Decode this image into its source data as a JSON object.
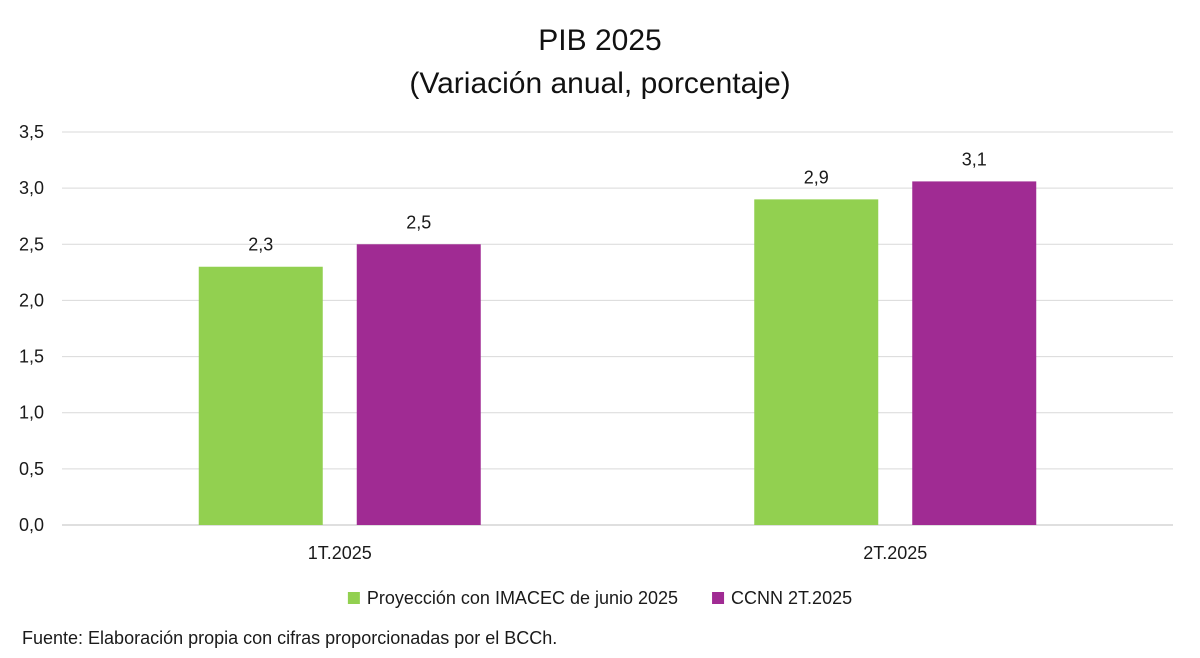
{
  "chart_data": {
    "type": "bar",
    "title": "PIB 2025",
    "subtitle": "(Variación anual, porcentaje)",
    "categories": [
      "1T.2025",
      "2T.2025"
    ],
    "series": [
      {
        "name": "Proyección con IMACEC de junio 2025",
        "color": "#92d050",
        "values": [
          2.3,
          2.9
        ],
        "labels": [
          "2,3",
          "2,9"
        ]
      },
      {
        "name": "CCNN 2T.2025",
        "color": "#a02b93",
        "values": [
          2.5,
          3.06
        ],
        "labels": [
          "2,5",
          "3,1"
        ]
      }
    ],
    "yticks": [
      0,
      0.5,
      1,
      1.5,
      2,
      2.5,
      3,
      3.5
    ],
    "ytick_labels": [
      "0,0",
      "0,5",
      "1,0",
      "1,5",
      "2,0",
      "2,5",
      "3,0",
      "3,5"
    ],
    "ylim": [
      0,
      3.5
    ],
    "grid": true,
    "legend_position": "bottom"
  },
  "source_note": "Fuente: Elaboración propia con cifras proporcionadas por el BCCh."
}
